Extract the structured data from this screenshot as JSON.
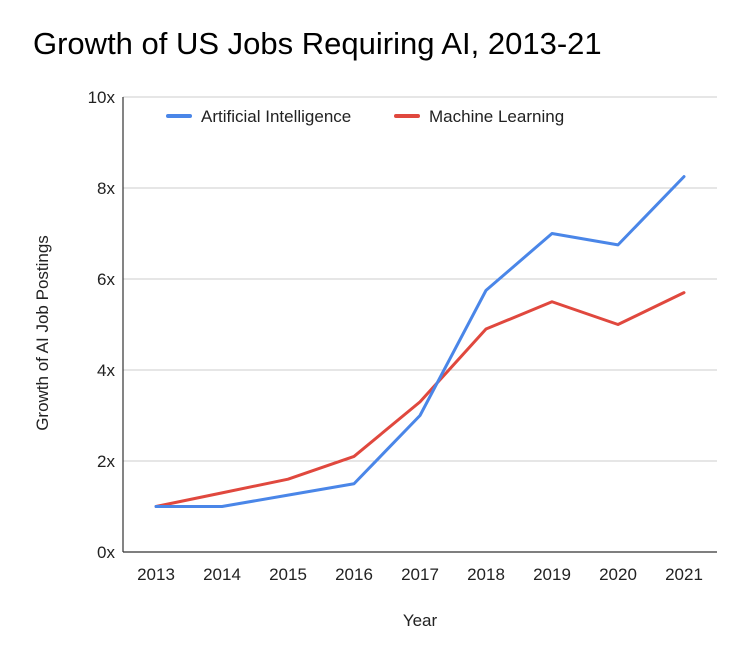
{
  "chart_data": {
    "type": "line",
    "title": "Growth of US Jobs Requiring AI, 2013-21",
    "xlabel": "Year",
    "ylabel": "Growth of AI Job Postings",
    "categories": [
      "2013",
      "2014",
      "2015",
      "2016",
      "2017",
      "2018",
      "2019",
      "2020",
      "2021"
    ],
    "series": [
      {
        "name": "Artificial Intelligence",
        "color": "#4a86e8",
        "values": [
          1.0,
          1.0,
          1.25,
          1.5,
          3.0,
          5.75,
          7.0,
          6.75,
          8.25
        ]
      },
      {
        "name": "Machine Learning",
        "color": "#e0483e",
        "values": [
          1.0,
          1.3,
          1.6,
          2.1,
          3.3,
          4.9,
          5.5,
          5.0,
          5.7
        ]
      }
    ],
    "ylim": [
      0,
      10
    ],
    "yticks": [
      0,
      2,
      4,
      6,
      8,
      10
    ],
    "ytick_labels": [
      "0x",
      "2x",
      "4x",
      "6x",
      "8x",
      "10x"
    ],
    "grid": true,
    "legend_position": "top"
  }
}
